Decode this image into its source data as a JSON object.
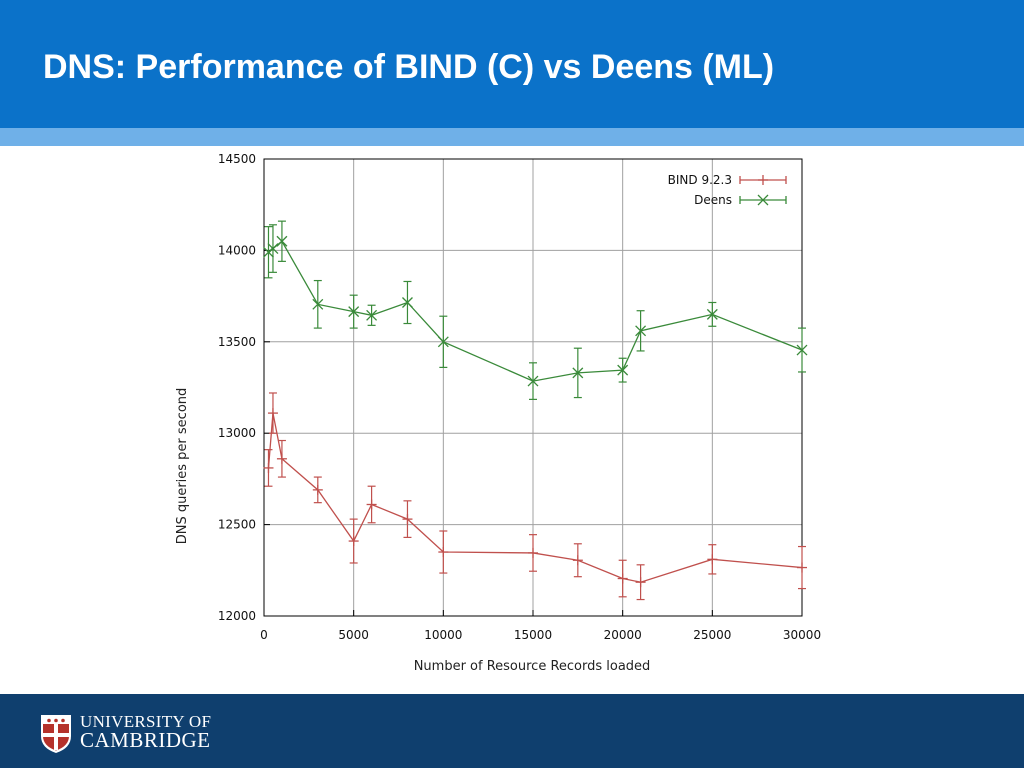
{
  "slide": {
    "title": "DNS: Performance of BIND (C) vs Deens (ML)"
  },
  "colors": {
    "header": "#0b72c9",
    "header_stripe": "#6fb0e8",
    "footer": "#0f3f6e",
    "bind_series": "#c0504d",
    "deens_series": "#3a8a3a"
  },
  "footer": {
    "logo_line_1": "UNIVERSITY OF",
    "logo_line_2": "CAMBRIDGE"
  },
  "chart_data": {
    "type": "line",
    "title": "",
    "xlabel": "Number of Resource Records loaded",
    "ylabel": "DNS queries per second",
    "xlim": [
      0,
      30000
    ],
    "ylim": [
      12000,
      14500
    ],
    "xticks": [
      0,
      5000,
      10000,
      15000,
      20000,
      25000,
      30000
    ],
    "yticks": [
      12000,
      12500,
      13000,
      13500,
      14000,
      14500
    ],
    "grid": true,
    "legend_position": "top-right",
    "series": [
      {
        "name": "BIND 9.2.3",
        "color": "#c0504d",
        "marker": "plus",
        "points": [
          {
            "x": 250,
            "y": 12810,
            "err": 100
          },
          {
            "x": 500,
            "y": 13110,
            "err": 110
          },
          {
            "x": 1000,
            "y": 12860,
            "err": 100
          },
          {
            "x": 3000,
            "y": 12690,
            "err": 70
          },
          {
            "x": 5000,
            "y": 12410,
            "err": 120
          },
          {
            "x": 6000,
            "y": 12610,
            "err": 100
          },
          {
            "x": 8000,
            "y": 12530,
            "err": 100
          },
          {
            "x": 10000,
            "y": 12350,
            "err": 115
          },
          {
            "x": 15000,
            "y": 12345,
            "err": 100
          },
          {
            "x": 17500,
            "y": 12305,
            "err": 90
          },
          {
            "x": 20000,
            "y": 12205,
            "err": 100
          },
          {
            "x": 21000,
            "y": 12185,
            "err": 95
          },
          {
            "x": 25000,
            "y": 12310,
            "err": 80
          },
          {
            "x": 30000,
            "y": 12265,
            "err": 115
          }
        ]
      },
      {
        "name": "Deens",
        "color": "#3a8a3a",
        "marker": "cross",
        "points": [
          {
            "x": 250,
            "y": 13990,
            "err": 140
          },
          {
            "x": 500,
            "y": 14010,
            "err": 130
          },
          {
            "x": 1000,
            "y": 14050,
            "err": 110
          },
          {
            "x": 3000,
            "y": 13705,
            "err": 130
          },
          {
            "x": 5000,
            "y": 13665,
            "err": 90
          },
          {
            "x": 6000,
            "y": 13645,
            "err": 55
          },
          {
            "x": 8000,
            "y": 13715,
            "err": 115
          },
          {
            "x": 10000,
            "y": 13500,
            "err": 140
          },
          {
            "x": 15000,
            "y": 13285,
            "err": 100
          },
          {
            "x": 17500,
            "y": 13330,
            "err": 135
          },
          {
            "x": 20000,
            "y": 13345,
            "err": 65
          },
          {
            "x": 21000,
            "y": 13560,
            "err": 110
          },
          {
            "x": 25000,
            "y": 13650,
            "err": 65
          },
          {
            "x": 30000,
            "y": 13455,
            "err": 120
          }
        ]
      }
    ]
  }
}
